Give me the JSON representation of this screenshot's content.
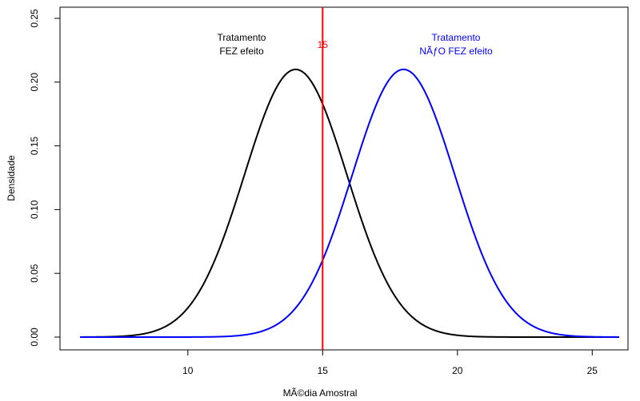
{
  "chart_data": {
    "type": "line",
    "title": "",
    "xlabel": "MÃ©dia Amostral",
    "ylabel": "Densidade",
    "xlim": [
      6,
      26
    ],
    "ylim": [
      0,
      0.25
    ],
    "x_ticks": [
      "10",
      "15",
      "20",
      "25"
    ],
    "y_ticks": [
      "0.00",
      "0.05",
      "0.10",
      "0.15",
      "0.20",
      "0.25"
    ],
    "grid": false,
    "series": [
      {
        "name": "",
        "distribution": "normal",
        "mean": 14,
        "sd": 1.9,
        "color": "#000000"
      },
      {
        "name": "",
        "distribution": "normal",
        "mean": 18,
        "sd": 1.9,
        "color": "#0000ff"
      }
    ],
    "vline": {
      "x": 15,
      "label": "15",
      "color": "#ff0000"
    },
    "annotations": [
      {
        "lines": [
          "Tratamento",
          "FEZ efeito"
        ],
        "color": "#000000"
      },
      {
        "lines": [
          "Tratamento",
          "NÃƒO FEZ efeito"
        ],
        "color": "#0000ff"
      }
    ]
  }
}
